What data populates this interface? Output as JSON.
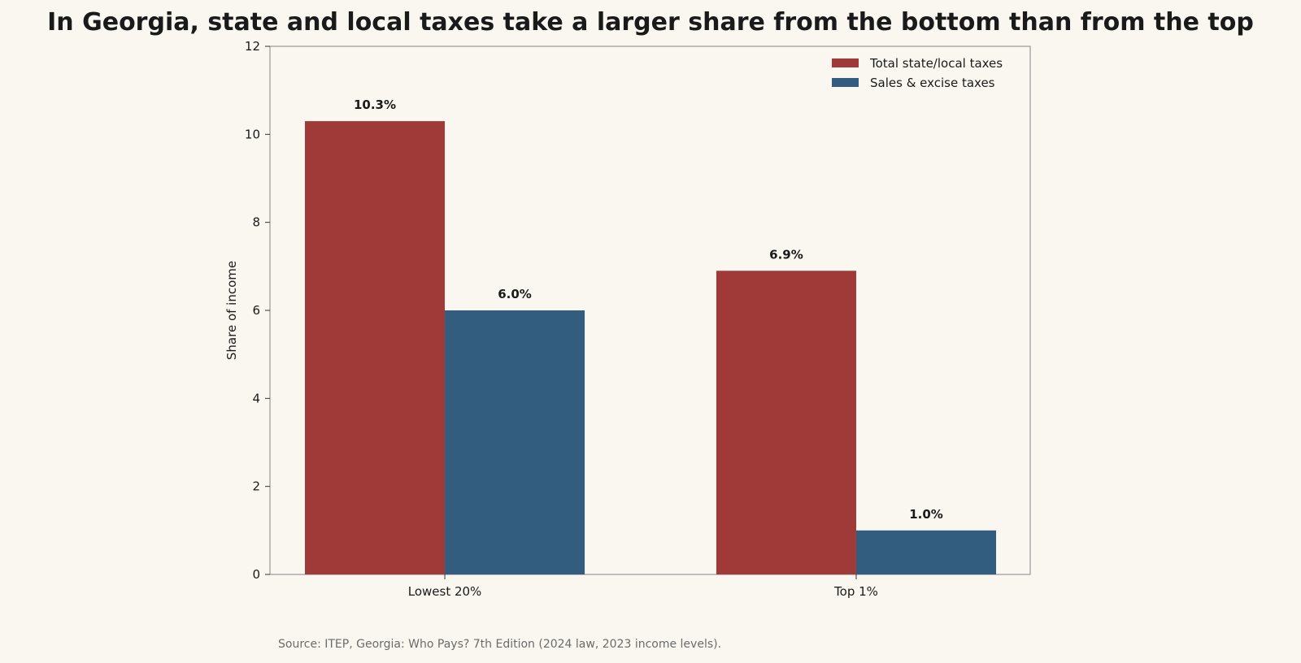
{
  "chart_data": {
    "type": "bar",
    "title": "In Georgia, state and local taxes take a larger share from the bottom than from the top",
    "xlabel": "",
    "ylabel": "Share of income",
    "categories": [
      "Lowest 20%",
      "Top 1%"
    ],
    "series": [
      {
        "name": "Total state/local taxes",
        "values": [
          10.3,
          6.9
        ],
        "labels": [
          "10.3%",
          "6.9%"
        ],
        "color": "#a03a38"
      },
      {
        "name": "Sales & excise taxes",
        "values": [
          6.0,
          1.0
        ],
        "labels": [
          "6.0%",
          "1.0%"
        ],
        "color": "#335d7e"
      }
    ],
    "ylim": [
      0,
      12
    ],
    "yticks": [
      0,
      2,
      4,
      6,
      8,
      10,
      12
    ],
    "grid": false,
    "legend_position": "top-right",
    "source": "Source: ITEP, Georgia: Who Pays? 7th Edition (2024 law, 2023 income levels)."
  },
  "colors": {
    "background": "#f9f7ef",
    "axis": "#999999",
    "text": "#1a1a1a",
    "source_text": "#6b6b6b"
  }
}
